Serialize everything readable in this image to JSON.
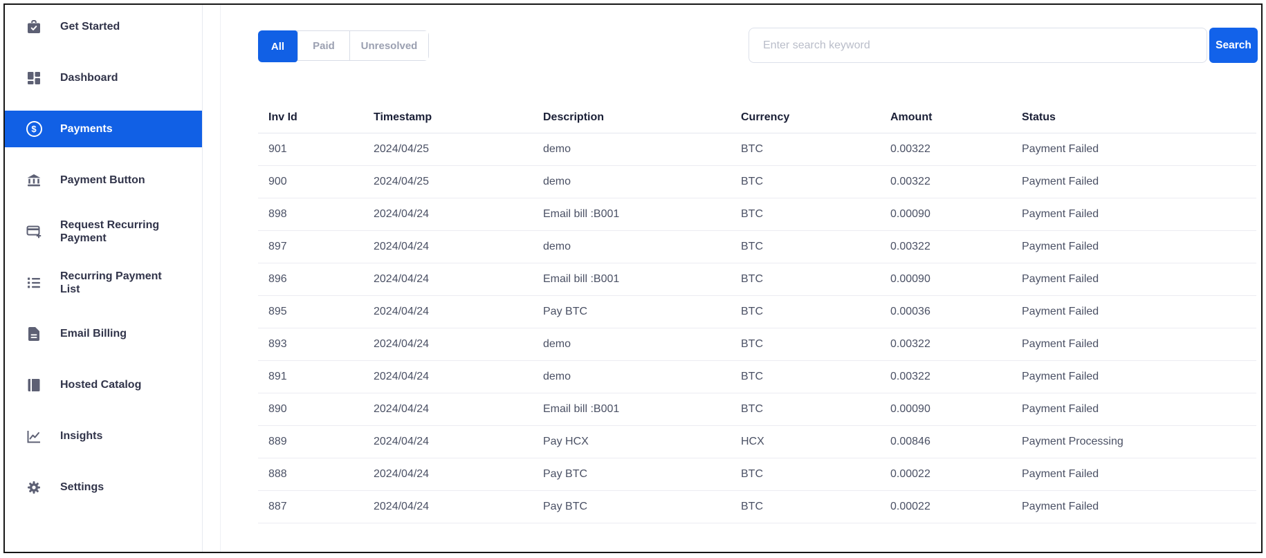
{
  "sidebar": {
    "items": [
      {
        "slug": "get-started",
        "label": "Get Started",
        "icon": "clipboard-check-icon",
        "active": false
      },
      {
        "slug": "dashboard",
        "label": "Dashboard",
        "icon": "grid-icon",
        "active": false
      },
      {
        "slug": "payments",
        "label": "Payments",
        "icon": "dollar-circle-icon",
        "active": true
      },
      {
        "slug": "payment-button",
        "label": "Payment Button",
        "icon": "bank-icon",
        "active": false
      },
      {
        "slug": "request-recurring-payment",
        "label": "Request Recurring Payment",
        "icon": "card-plus-icon",
        "active": false
      },
      {
        "slug": "recurring-payment-list",
        "label": "Recurring Payment List",
        "icon": "list-icon",
        "active": false
      },
      {
        "slug": "email-billing",
        "label": "Email Billing",
        "icon": "document-icon",
        "active": false
      },
      {
        "slug": "hosted-catalog",
        "label": "Hosted Catalog",
        "icon": "book-icon",
        "active": false
      },
      {
        "slug": "insights",
        "label": "Insights",
        "icon": "line-chart-icon",
        "active": false
      },
      {
        "slug": "settings",
        "label": "Settings",
        "icon": "gear-icon",
        "active": false
      }
    ]
  },
  "filters": {
    "tabs": [
      {
        "label": "All",
        "active": true
      },
      {
        "label": "Paid",
        "active": false
      },
      {
        "label": "Unresolved",
        "active": false
      }
    ]
  },
  "search": {
    "placeholder": "Enter search keyword",
    "button_label": "Search"
  },
  "table": {
    "columns": [
      "Inv Id",
      "Timestamp",
      "Description",
      "Currency",
      "Amount",
      "Status"
    ],
    "rows": [
      {
        "inv_id": "901",
        "timestamp": "2024/04/25",
        "description": "demo",
        "currency": "BTC",
        "amount": "0.00322",
        "status": "Payment Failed"
      },
      {
        "inv_id": "900",
        "timestamp": "2024/04/25",
        "description": "demo",
        "currency": "BTC",
        "amount": "0.00322",
        "status": "Payment Failed"
      },
      {
        "inv_id": "898",
        "timestamp": "2024/04/24",
        "description": "Email bill :B001",
        "currency": "BTC",
        "amount": "0.00090",
        "status": "Payment Failed"
      },
      {
        "inv_id": "897",
        "timestamp": "2024/04/24",
        "description": "demo",
        "currency": "BTC",
        "amount": "0.00322",
        "status": "Payment Failed"
      },
      {
        "inv_id": "896",
        "timestamp": "2024/04/24",
        "description": "Email bill :B001",
        "currency": "BTC",
        "amount": "0.00090",
        "status": "Payment Failed"
      },
      {
        "inv_id": "895",
        "timestamp": "2024/04/24",
        "description": "Pay BTC",
        "currency": "BTC",
        "amount": "0.00036",
        "status": "Payment Failed"
      },
      {
        "inv_id": "893",
        "timestamp": "2024/04/24",
        "description": "demo",
        "currency": "BTC",
        "amount": "0.00322",
        "status": "Payment Failed"
      },
      {
        "inv_id": "891",
        "timestamp": "2024/04/24",
        "description": "demo",
        "currency": "BTC",
        "amount": "0.00322",
        "status": "Payment Failed"
      },
      {
        "inv_id": "890",
        "timestamp": "2024/04/24",
        "description": "Email bill :B001",
        "currency": "BTC",
        "amount": "0.00090",
        "status": "Payment Failed"
      },
      {
        "inv_id": "889",
        "timestamp": "2024/04/24",
        "description": "Pay HCX",
        "currency": "HCX",
        "amount": "0.00846",
        "status": "Payment Processing"
      },
      {
        "inv_id": "888",
        "timestamp": "2024/04/24",
        "description": "Pay BTC",
        "currency": "BTC",
        "amount": "0.00022",
        "status": "Payment Failed"
      },
      {
        "inv_id": "887",
        "timestamp": "2024/04/24",
        "description": "Pay BTC",
        "currency": "BTC",
        "amount": "0.00022",
        "status": "Payment Failed"
      }
    ],
    "status_styles": {
      "Payment Failed": "danger",
      "Payment Processing": "info"
    }
  },
  "colors": {
    "primary": "#1160e5",
    "danger": "#f1416c",
    "info": "#3ac2ef"
  }
}
